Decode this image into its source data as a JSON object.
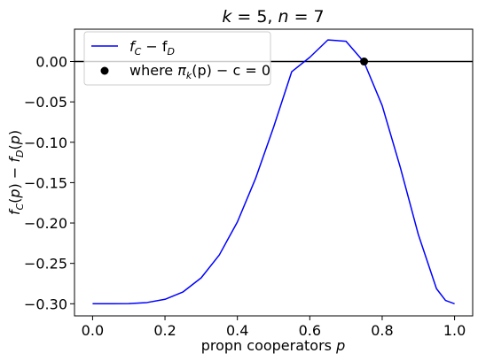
{
  "chart_data": {
    "type": "line",
    "title": "k = 5, n = 7",
    "title_parts": {
      "k_sym": "k",
      "k_eq": " = 5, ",
      "n_sym": "n",
      "n_eq": " = 7"
    },
    "xlabel": "propn cooperators",
    "xlabel_var": "p",
    "ylabel": "f_C(p) − f_D(p)",
    "xlim": [
      -0.05,
      1.05
    ],
    "ylim": [
      -0.315,
      0.04
    ],
    "xticks": [
      0.0,
      0.2,
      0.4,
      0.6,
      0.8,
      1.0
    ],
    "xtick_labels": [
      "0.0",
      "0.2",
      "0.4",
      "0.6",
      "0.8",
      "1.0"
    ],
    "yticks": [
      0.0,
      -0.05,
      -0.1,
      -0.15,
      -0.2,
      -0.25,
      -0.3
    ],
    "ytick_labels": [
      "0.00",
      "−0.05",
      "−0.10",
      "−0.15",
      "−0.20",
      "−0.25",
      "−0.30"
    ],
    "grid": false,
    "legend_position": "top-left",
    "hline": {
      "y": 0.0,
      "color": "#000000"
    },
    "series": [
      {
        "name": "f_C − f_D",
        "color": "#0000ff",
        "x": [
          0.0,
          0.05,
          0.1,
          0.15,
          0.2,
          0.25,
          0.3,
          0.35,
          0.4,
          0.45,
          0.5,
          0.55,
          0.6,
          0.65,
          0.7,
          0.75,
          0.8,
          0.85,
          0.9,
          0.95,
          0.975,
          1.0
        ],
        "y": [
          -0.3,
          -0.3,
          -0.2998,
          -0.2985,
          -0.2945,
          -0.2853,
          -0.2679,
          -0.2396,
          -0.1987,
          -0.1451,
          -0.0813,
          -0.0127,
          0.0052,
          0.0267,
          0.0251,
          -0.0008,
          -0.0546,
          -0.131,
          -0.2145,
          -0.2813,
          -0.2959,
          -0.3
        ]
      }
    ],
    "points": {
      "name": "where π_k(p) − c = 0",
      "color": "#000000",
      "x": [
        0.75
      ],
      "y": [
        0.0
      ]
    },
    "legend": [
      {
        "kind": "line",
        "text_main": "f",
        "sub1": "C",
        "mid": " − f",
        "sub2": "D",
        "color": "#0000ff"
      },
      {
        "kind": "marker",
        "text_pre": "where ",
        "pi": "π",
        "sub": "k",
        "text_post": "(p) − c = 0",
        "color": "#000000"
      }
    ]
  }
}
